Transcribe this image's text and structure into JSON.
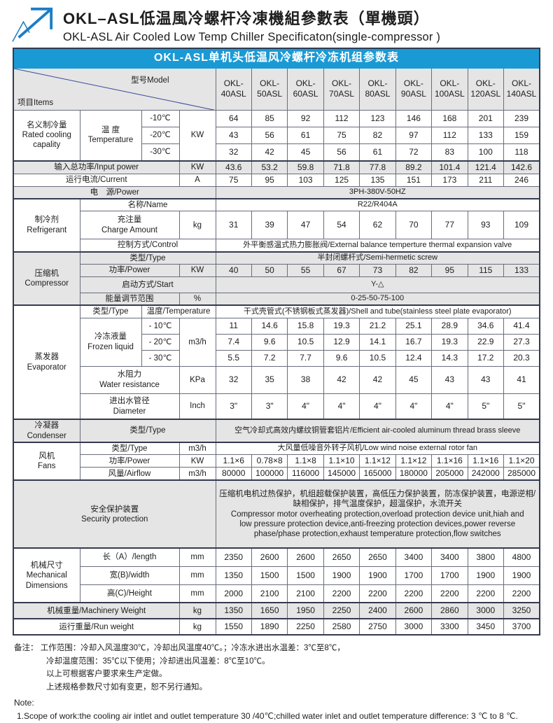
{
  "header": {
    "title_zh": "OKL–ASL低温風冷螺杆冷凍機組參數表（單機頭）",
    "title_en": "OKL-ASL Air Cooled Low Temp Chiller Specificaton(single-compressor )"
  },
  "banner": "OKL-ASL单机头低温风冷螺杆冷冻机组参数表",
  "corner": {
    "items": "项目Items",
    "model": "型号Model"
  },
  "models": [
    "OKL-\n40ASL",
    "OKL-\n50ASL",
    "OKL-\n60ASL",
    "OKL-\n70ASL",
    "OKL-\n80ASL",
    "OKL-\n90ASL",
    "OKL-\n100ASL",
    "OKL-\n120ASL",
    "OKL-\n140ASL"
  ],
  "cooling": {
    "label": "名义制冷量\nRated cooling\ncapality",
    "temp_label": "温 度\nTemperature",
    "unit": "KW",
    "rows": [
      {
        "temp": "-10℃",
        "values": [
          64,
          85,
          92,
          112,
          123,
          146,
          168,
          201,
          239
        ]
      },
      {
        "temp": "-20℃",
        "values": [
          43,
          56,
          61,
          75,
          82,
          97,
          112,
          133,
          159
        ]
      },
      {
        "temp": "-30℃",
        "values": [
          32,
          42,
          45,
          56,
          61,
          72,
          83,
          100,
          118
        ]
      }
    ]
  },
  "input_power": {
    "label": "输入总功率/Input power",
    "unit": "KW",
    "values": [
      43.6,
      53.2,
      59.8,
      71.8,
      77.8,
      89.2,
      101.4,
      121.4,
      142.6
    ]
  },
  "current": {
    "label": "运行电流/Current",
    "unit": "A",
    "values": [
      75,
      95,
      103,
      125,
      135,
      151,
      173,
      211,
      246
    ]
  },
  "power_supply": {
    "label": "电　源/Power",
    "value": "3PH-380V-50HZ"
  },
  "refrigerant": {
    "label": "制冷剂\nRefrigerant",
    "name_label": "名称/Name",
    "name_value": "R22/R404A",
    "charge_label": "充注量\nCharge Amount",
    "charge_unit": "kg",
    "charge_values": [
      31,
      39,
      47,
      54,
      62,
      70,
      77,
      93,
      109
    ],
    "control_label": "控制方式/Control",
    "control_value": "外平衡感温式热力膨胀阀/External balance temperture thermal expansion valve"
  },
  "compressor": {
    "label": "压缩机\nCompressor",
    "type_label": "类型/Type",
    "type_value": "半封闭螺杆式/Semi-hermetic screw",
    "power_label": "功率/Power",
    "power_unit": "KW",
    "power_values": [
      40,
      50,
      55,
      67,
      73,
      82,
      95,
      115,
      133
    ],
    "start_label": "启动方式/Start",
    "start_value": "Y-△",
    "energy_label": "能量调节范围",
    "energy_unit": "%",
    "energy_value": "0-25-50-75-100"
  },
  "evaporator": {
    "label": "蒸发器\nEvaporator",
    "type_label": "类型/Type",
    "temp_label": "温度/Temperature",
    "type_value": "干式壳管式(不锈钢板式蒸发器)/Shell and tube(stainless steel plate evaporator)",
    "frozen_label": "冷冻液量\nFrozen liquid",
    "frozen_unit": "m3/h",
    "frozen_rows": [
      {
        "temp": "- 10℃",
        "values": [
          11,
          14.6,
          15.8,
          19.3,
          21.2,
          25.1,
          28.9,
          34.6,
          41.4
        ]
      },
      {
        "temp": "- 20℃",
        "values": [
          7.4,
          9.6,
          10.5,
          12.9,
          14.1,
          16.7,
          19.3,
          22.9,
          27.3
        ]
      },
      {
        "temp": "- 30℃",
        "values": [
          5.5,
          7.2,
          7.7,
          9.6,
          10.5,
          12.4,
          14.3,
          17.2,
          20.3
        ]
      }
    ],
    "water_label": "水阻力\nWater resistance",
    "water_unit": "KPa",
    "water_values": [
      32,
      35,
      38,
      42,
      42,
      45,
      43,
      43,
      41
    ],
    "diameter_label": "进出水管径\nDiameter",
    "diameter_unit": "Inch",
    "diameter_values": [
      "3\"",
      "3\"",
      "4\"",
      "4\"",
      "4\"",
      "4\"",
      "4\"",
      "5\"",
      "5\""
    ]
  },
  "condenser": {
    "label": "冷凝器\nCondenser",
    "type_label": "类型/Type",
    "type_value": "空气冷却式高效内螺纹铜管套铝片/Efficient air-cooled aluminum thread brass sleeve"
  },
  "fans": {
    "label": "风机\nFans",
    "type_label": "类型/Type",
    "type_unit": "m3/h",
    "type_value": "大风量低噪音外转子风机/Low wind noise external rotor fan",
    "power_label": "功率/Power",
    "power_unit": "KW",
    "power_values": [
      "1.1×6",
      "0.78×8",
      "1.1×8",
      "1.1×10",
      "1.1×12",
      "1.1×12",
      "1.1×16",
      "1.1×16",
      "1.1×20"
    ],
    "airflow_label": "风量/Airflow",
    "airflow_unit": "m3/h",
    "airflow_values": [
      80000,
      100000,
      116000,
      145000,
      165000,
      180000,
      205000,
      242000,
      285000
    ]
  },
  "security": {
    "label": "安全保护装置\nSecurity protection",
    "text": "压缩机电机过热保护，机组超载保护装置，高低压力保护装置，防冻保护装置，电源逆相/\n缺相保护，排气温度保护，超温保护，水流开关\nCompressor motor overheating protection,overload protection device unit,hiah and\nlow pressure protection device,anti-freezing protection devices,power reverse\nphase/phase protection,exhaust temperature protection,flow switches"
  },
  "dimensions": {
    "label": "机械尺寸\nMechanical\nDimensions",
    "length_label": "长（A）/length",
    "length_unit": "mm",
    "length_values": [
      2350,
      2600,
      2600,
      2650,
      2650,
      3400,
      3400,
      3800,
      4800
    ],
    "width_label": "宽(B)/width",
    "width_unit": "mm",
    "width_values": [
      1350,
      1500,
      1500,
      1900,
      1900,
      1700,
      1700,
      1900,
      1900
    ],
    "height_label": "高(C)/Height",
    "height_unit": "mm",
    "height_values": [
      2000,
      2100,
      2100,
      2200,
      2200,
      2200,
      2200,
      2200,
      2200
    ]
  },
  "machinery_weight": {
    "label": "机械重量/Machinery Weight",
    "unit": "kg",
    "values": [
      1350,
      1650,
      1950,
      2250,
      2400,
      2600,
      2860,
      3000,
      3250
    ]
  },
  "run_weight": {
    "label": "运行重量/Run weight",
    "unit": "kg",
    "values": [
      1550,
      1890,
      2250,
      2580,
      2750,
      3000,
      3300,
      3450,
      3700
    ]
  },
  "notes": {
    "zh": [
      "备注： 工作范围：冷却入风温度30℃，冷却出风温度40℃。；冷冻水进出水温差：3℃至8℃，",
      "冷却温度范围：35℃以下使用；冷却进出风温差：8℃至10℃。",
      "以上可根据客户要求来生产定做。",
      "上述规格参数尺寸如有变更，恕不另行通知。"
    ],
    "en_title": "Note:",
    "en": "1.Scope of work:the cooling air intlet and  outlet temperature 30 /40℃;chilled water inlet and outlet temperature difference: 3 ℃ to 8 ℃."
  },
  "colors": {
    "banner_blue": "#1a9ad5",
    "row_gray": "#e5e5e5",
    "logo_blue": "#1b7ec6",
    "border_dark": "#343a50"
  }
}
